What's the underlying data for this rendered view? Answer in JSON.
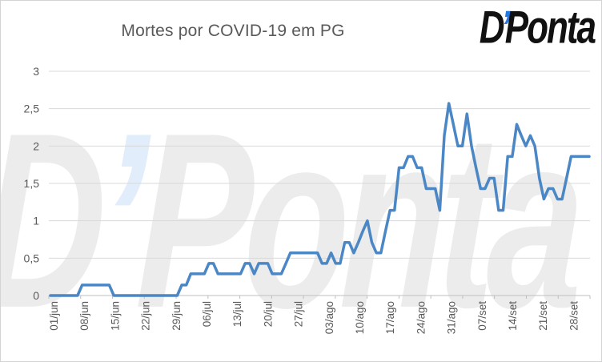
{
  "title": "Mortes por COVID-19 em PG",
  "logo": {
    "d": "D",
    "apostrophe": "’",
    "rest": "Ponta"
  },
  "colors": {
    "line": "#4C87C5",
    "grid": "#d9d9d9",
    "axis": "#bfbfbf",
    "text": "#595959",
    "logo_black": "#111111",
    "logo_blue": "#2478e0"
  },
  "chart_data": {
    "type": "line",
    "title": "Mortes por COVID-19 em PG",
    "xlabel": "",
    "ylabel": "",
    "ylim": [
      0,
      3
    ],
    "grid": "horizontal",
    "legend": "none",
    "y_ticks": [
      "0",
      "0,5",
      "1",
      "1,5",
      "2",
      "2,5",
      "3"
    ],
    "x_tick_labels": [
      "01/jun",
      "08/jun",
      "15/jun",
      "22/jun",
      "29/jun",
      "06/jul",
      "13/jul",
      "20/jul",
      "27/jul",
      "03/ago",
      "10/ago",
      "17/ago",
      "24/ago",
      "31/ago",
      "07/set",
      "14/set",
      "21/set",
      "28/set"
    ],
    "x": [
      "01/jun",
      "02/jun",
      "03/jun",
      "04/jun",
      "05/jun",
      "06/jun",
      "07/jun",
      "08/jun",
      "09/jun",
      "10/jun",
      "11/jun",
      "12/jun",
      "13/jun",
      "14/jun",
      "15/jun",
      "16/jun",
      "17/jun",
      "18/jun",
      "19/jun",
      "20/jun",
      "21/jun",
      "22/jun",
      "23/jun",
      "24/jun",
      "25/jun",
      "26/jun",
      "27/jun",
      "28/jun",
      "29/jun",
      "30/jun",
      "01/jul",
      "02/jul",
      "03/jul",
      "04/jul",
      "05/jul",
      "06/jul",
      "07/jul",
      "08/jul",
      "09/jul",
      "10/jul",
      "11/jul",
      "12/jul",
      "13/jul",
      "14/jul",
      "15/jul",
      "16/jul",
      "17/jul",
      "18/jul",
      "19/jul",
      "20/jul",
      "21/jul",
      "22/jul",
      "23/jul",
      "24/jul",
      "25/jul",
      "26/jul",
      "27/jul",
      "28/jul",
      "29/jul",
      "30/jul",
      "31/jul",
      "01/ago",
      "02/ago",
      "03/ago",
      "04/ago",
      "05/ago",
      "06/ago",
      "07/ago",
      "08/ago",
      "09/ago",
      "10/ago",
      "11/ago",
      "12/ago",
      "13/ago",
      "14/ago",
      "15/ago",
      "16/ago",
      "17/ago",
      "18/ago",
      "19/ago",
      "20/ago",
      "21/ago",
      "22/ago",
      "23/ago",
      "24/ago",
      "25/ago",
      "26/ago",
      "27/ago",
      "28/ago",
      "29/ago",
      "30/ago",
      "31/ago",
      "01/set",
      "02/set",
      "03/set",
      "04/set",
      "05/set",
      "06/set",
      "07/set",
      "08/set",
      "09/set",
      "10/set",
      "11/set",
      "12/set",
      "13/set",
      "14/set",
      "15/set",
      "16/set",
      "17/set",
      "18/set",
      "19/set",
      "20/set",
      "21/set",
      "22/set",
      "23/set",
      "24/set",
      "25/set",
      "26/set",
      "27/set",
      "28/set"
    ],
    "values": [
      0,
      0,
      0,
      0,
      0,
      0,
      0,
      0.14,
      0.14,
      0.14,
      0.14,
      0.14,
      0.14,
      0.14,
      0,
      0,
      0,
      0,
      0,
      0,
      0,
      0,
      0,
      0,
      0,
      0,
      0,
      0,
      0,
      0.14,
      0.14,
      0.29,
      0.29,
      0.29,
      0.29,
      0.43,
      0.43,
      0.29,
      0.29,
      0.29,
      0.29,
      0.29,
      0.29,
      0.43,
      0.43,
      0.29,
      0.43,
      0.43,
      0.43,
      0.29,
      0.29,
      0.29,
      0.43,
      0.57,
      0.57,
      0.57,
      0.57,
      0.57,
      0.57,
      0.57,
      0.43,
      0.43,
      0.57,
      0.43,
      0.43,
      0.71,
      0.71,
      0.57,
      0.71,
      0.86,
      1,
      0.71,
      0.57,
      0.57,
      0.86,
      1.14,
      1.14,
      1.71,
      1.71,
      1.86,
      1.86,
      1.71,
      1.71,
      1.43,
      1.43,
      1.43,
      1.14,
      2.14,
      2.57,
      2.29,
      2,
      2,
      2.43,
      2,
      1.71,
      1.43,
      1.43,
      1.57,
      1.57,
      1.14,
      1.14,
      1.86,
      1.86,
      2.29,
      2.14,
      2,
      2.14,
      2,
      1.57,
      1.29,
      1.43,
      1.43,
      1.29,
      1.29,
      1.57,
      1.86,
      1.86,
      1.86,
      1.86,
      1.86
    ]
  }
}
